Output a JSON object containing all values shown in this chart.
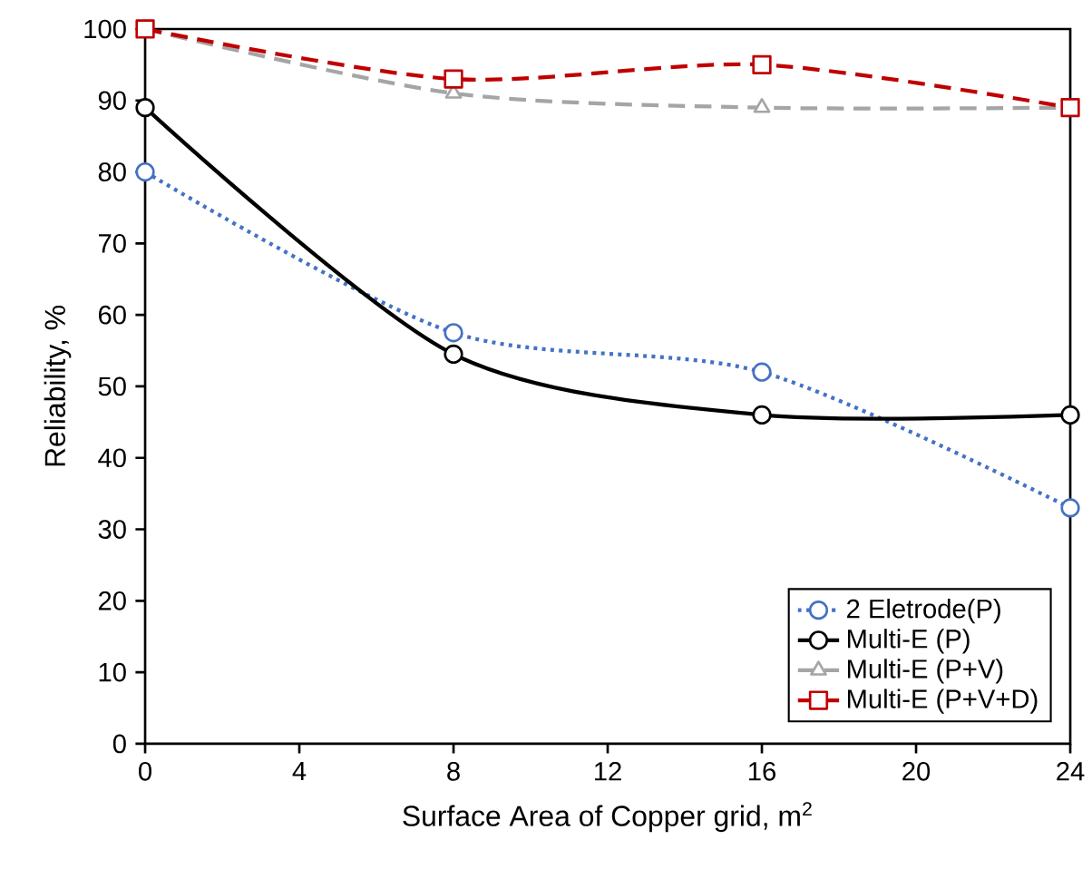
{
  "chart_data": {
    "type": "line",
    "xlabel": "Surface Area of Copper grid, m$^{2}$",
    "ylabel": "Reliability, %",
    "x": [
      0,
      8,
      16,
      24
    ],
    "series": [
      {
        "name": "2 Eletrode(P)",
        "color": "#4472c4",
        "values": [
          80,
          57.5,
          52,
          33
        ],
        "marker": "circle",
        "line_style": "dotted"
      },
      {
        "name": "Multi-E (P)",
        "color": "#000000",
        "values": [
          89,
          54.5,
          46,
          46
        ],
        "marker": "circle",
        "line_style": "solid"
      },
      {
        "name": "Multi-E (P+V)",
        "color": "#a5a5a5",
        "values": [
          100,
          91,
          89,
          89
        ],
        "marker": "triangle",
        "line_style": "dashed"
      },
      {
        "name": "Multi-E (P+V+D)",
        "color": "#c00000",
        "values": [
          100,
          93,
          95,
          89
        ],
        "marker": "square",
        "line_style": "dashed"
      }
    ],
    "xlim": [
      0,
      24
    ],
    "xticks": [
      0,
      4,
      8,
      12,
      16,
      20,
      24
    ],
    "ylim": [
      0,
      100
    ],
    "yticks": [
      0,
      10,
      20,
      30,
      40,
      50,
      60,
      70,
      80,
      90,
      100
    ],
    "grid": false,
    "legend": "bottom right"
  }
}
